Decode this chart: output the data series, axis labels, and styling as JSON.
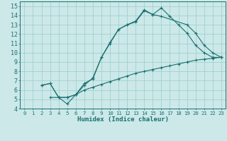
{
  "title": "",
  "xlabel": "Humidex (Indice chaleur)",
  "xlim": [
    -0.5,
    23.5
  ],
  "ylim": [
    4,
    15.5
  ],
  "xticks": [
    0,
    1,
    2,
    3,
    4,
    5,
    6,
    7,
    8,
    9,
    10,
    11,
    12,
    13,
    14,
    15,
    16,
    17,
    18,
    19,
    20,
    21,
    22,
    23
  ],
  "yticks": [
    4,
    5,
    6,
    7,
    8,
    9,
    10,
    11,
    12,
    13,
    14,
    15
  ],
  "bg_color": "#cce8e8",
  "line_color": "#1a7070",
  "grid_color": "#99cccc",
  "curve1_x": [
    2,
    3,
    4,
    5,
    6,
    7,
    8,
    9,
    10,
    11,
    12,
    13,
    14,
    15,
    16,
    19,
    20,
    21,
    22,
    23
  ],
  "curve1_y": [
    6.5,
    6.7,
    5.2,
    4.5,
    5.5,
    6.7,
    7.2,
    9.5,
    11.1,
    12.5,
    13.0,
    13.4,
    14.6,
    14.1,
    13.9,
    13.0,
    12.1,
    10.8,
    10.0,
    9.5
  ],
  "curve2_x": [
    2,
    3,
    4,
    5,
    6,
    7,
    8,
    9,
    10,
    11,
    12,
    13,
    14,
    15,
    16,
    17,
    18,
    19,
    20,
    21,
    22,
    23
  ],
  "curve2_y": [
    6.5,
    6.7,
    5.2,
    5.2,
    5.5,
    6.5,
    7.3,
    9.5,
    11.0,
    12.5,
    13.0,
    13.3,
    14.5,
    14.1,
    14.8,
    13.9,
    13.0,
    12.1,
    10.8,
    10.0,
    9.5,
    9.5
  ],
  "curve3_x": [
    3,
    4,
    5,
    6,
    7,
    8,
    9,
    10,
    11,
    12,
    13,
    14,
    15,
    16,
    17,
    18,
    19,
    20,
    21,
    22,
    23
  ],
  "curve3_y": [
    5.2,
    5.2,
    5.2,
    5.5,
    6.0,
    6.3,
    6.6,
    6.9,
    7.2,
    7.5,
    7.8,
    8.0,
    8.2,
    8.4,
    8.6,
    8.8,
    9.0,
    9.2,
    9.3,
    9.4,
    9.5
  ]
}
